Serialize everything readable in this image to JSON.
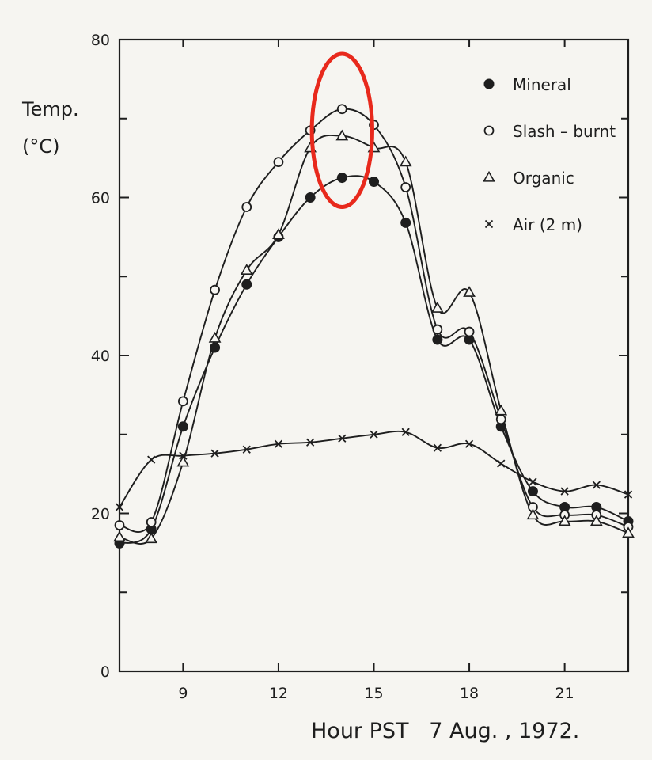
{
  "colors": {
    "ink": "#1e1e1e",
    "paper": "#f6f5f1",
    "highlight": "#e8291c"
  },
  "chart_data": {
    "type": "line",
    "title": "",
    "xlabel": "Hour PST   7 Aug. , 1972.",
    "ylabel_line1": "Temp.",
    "ylabel_line2": "(°C)",
    "xlim": [
      7,
      23
    ],
    "ylim": [
      0,
      80
    ],
    "xticks": [
      9,
      12,
      15,
      18,
      21
    ],
    "yticks": [
      0,
      20,
      40,
      60,
      80
    ],
    "grid": false,
    "legend_position": "top-right",
    "x": [
      7,
      8,
      9,
      10,
      11,
      12,
      13,
      14,
      15,
      16,
      17,
      18,
      19,
      20,
      21,
      22,
      23
    ],
    "series": [
      {
        "name": "Mineral",
        "marker": "filled-circle",
        "values": [
          16.2,
          18.0,
          31.0,
          41.0,
          49.0,
          55.0,
          60.0,
          62.5,
          62.0,
          56.8,
          42.0,
          42.0,
          31.0,
          22.8,
          20.8,
          20.8,
          19.0
        ]
      },
      {
        "name": "Slash – burnt",
        "marker": "open-circle",
        "values": [
          18.5,
          18.9,
          34.2,
          48.3,
          58.8,
          64.5,
          68.5,
          71.2,
          69.2,
          61.3,
          43.3,
          43.0,
          31.9,
          20.8,
          19.8,
          19.8,
          18.3
        ]
      },
      {
        "name": "Organic",
        "marker": "triangle",
        "values": [
          17.0,
          16.8,
          26.5,
          42.2,
          50.8,
          55.3,
          66.3,
          67.8,
          66.3,
          64.5,
          46.0,
          48.0,
          33.0,
          19.8,
          19.0,
          19.0,
          17.5
        ]
      },
      {
        "name": "Air (2 m)",
        "marker": "cross",
        "values": [
          20.8,
          26.8,
          27.3,
          27.6,
          28.1,
          28.8,
          29.0,
          29.5,
          30.0,
          30.3,
          28.3,
          28.8,
          26.3,
          24.0,
          22.8,
          23.6,
          22.4
        ]
      }
    ],
    "annotation": {
      "shape": "ellipse",
      "color": "#e8291c",
      "x_center": 14.0,
      "y_center": 68.5,
      "x_radius": 0.95,
      "y_radius": 9.7
    }
  }
}
